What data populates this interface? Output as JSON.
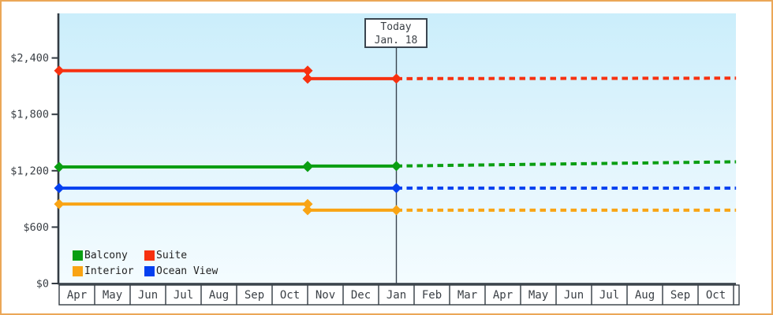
{
  "window": {
    "kind": "price-history-chart",
    "border_color": "#eba757",
    "plot_gradient_top": "#cbeefb",
    "plot_gradient_bottom": "#f4fcff",
    "axis_color": "#333b43"
  },
  "today_box": {
    "title": "Today",
    "date": "Jan. 18"
  },
  "chart_data": {
    "type": "line",
    "title": "",
    "xlabel": "",
    "ylabel": "",
    "x_categories": [
      "Apr",
      "May",
      "Jun",
      "Jul",
      "Aug",
      "Sep",
      "Oct",
      "Nov",
      "Dec",
      "Jan",
      "Feb",
      "Mar",
      "Apr",
      "May",
      "Jun",
      "Jul",
      "Aug",
      "Sep",
      "Oct"
    ],
    "y_ticks": [
      {
        "label": "$0",
        "value": 0
      },
      {
        "label": "$600",
        "value": 600
      },
      {
        "label": "$1,200",
        "value": 1200
      },
      {
        "label": "$1,800",
        "value": 1800
      },
      {
        "label": "$2,400",
        "value": 2400
      }
    ],
    "ylim": [
      0,
      2870
    ],
    "grid": false,
    "legend_position": "bottom-left-inside",
    "today_month_index": 9.5,
    "forecast_month_end": 19.07,
    "series": [
      {
        "name": "Balcony",
        "color": "#0a9e12",
        "history": [
          [
            0,
            1240
          ],
          [
            7,
            1240
          ],
          [
            7,
            1250
          ],
          [
            9.5,
            1250
          ]
        ],
        "forecast": [
          [
            9.5,
            1250
          ],
          [
            19.07,
            1295
          ]
        ],
        "markers": [
          [
            0,
            1240
          ],
          [
            7,
            1240
          ],
          [
            7,
            1250
          ],
          [
            9.5,
            1250
          ]
        ]
      },
      {
        "name": "Suite",
        "color": "#f73110",
        "history": [
          [
            0,
            2265
          ],
          [
            7,
            2265
          ],
          [
            7,
            2180
          ],
          [
            9.5,
            2180
          ]
        ],
        "forecast": [
          [
            9.5,
            2180
          ],
          [
            19.07,
            2185
          ]
        ],
        "markers": [
          [
            0,
            2265
          ],
          [
            7,
            2265
          ],
          [
            7,
            2180
          ],
          [
            9.5,
            2180
          ]
        ]
      },
      {
        "name": "Interior",
        "color": "#f9a414",
        "history": [
          [
            0,
            845
          ],
          [
            7,
            845
          ],
          [
            7,
            780
          ],
          [
            9.5,
            780
          ]
        ],
        "forecast": [
          [
            9.5,
            780
          ],
          [
            19.07,
            780
          ]
        ],
        "markers": [
          [
            0,
            845
          ],
          [
            7,
            845
          ],
          [
            7,
            780
          ],
          [
            9.5,
            780
          ]
        ]
      },
      {
        "name": "Ocean View",
        "color": "#0540f0",
        "history": [
          [
            0,
            1015
          ],
          [
            9.5,
            1015
          ]
        ],
        "forecast": [
          [
            9.5,
            1015
          ],
          [
            19.07,
            1015
          ]
        ],
        "markers": [
          [
            0,
            1015
          ],
          [
            9.5,
            1015
          ]
        ]
      }
    ]
  }
}
